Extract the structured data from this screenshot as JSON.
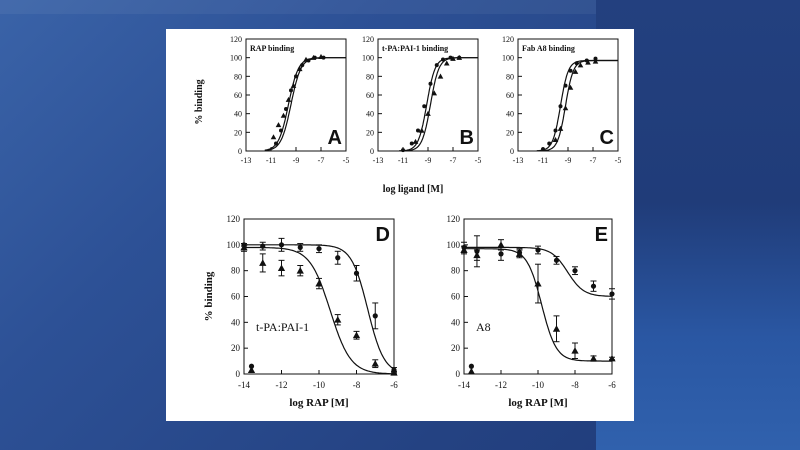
{
  "colors": {
    "background": "#2d5196",
    "right_panel": "#23407f",
    "figure_bg": "#ffffff",
    "ink": "#111111"
  },
  "figure": {
    "top_xlabel": "log ligand [M]",
    "ylabel": "% binding"
  },
  "chart_data": [
    {
      "id": "A",
      "type": "line",
      "letter": "A",
      "title": "RAP binding",
      "ylabel": "% binding",
      "xlim": [
        -13,
        -5
      ],
      "ylim": [
        0,
        120
      ],
      "xticks": [
        -13,
        -11,
        -9,
        -7,
        -5
      ],
      "yticks": [
        0,
        20,
        40,
        60,
        80,
        100,
        120
      ],
      "series": [
        {
          "marker": "circle",
          "ec50": -9.6,
          "hill": 1.1,
          "bottom": 0,
          "top": 100,
          "x_start": -11.5,
          "x_end": -5,
          "points": [
            [
              -10.6,
              8
            ],
            [
              -10.2,
              22
            ],
            [
              -9.8,
              45
            ],
            [
              -9.4,
              65
            ],
            [
              -9.0,
              80
            ],
            [
              -8.5,
              92
            ],
            [
              -8.0,
              97
            ],
            [
              -7.5,
              100
            ],
            [
              -6.8,
              100
            ]
          ]
        },
        {
          "marker": "triangle",
          "ec50": -9.4,
          "hill": 1.1,
          "bottom": 0,
          "top": 100,
          "x_start": -11.5,
          "x_end": -5,
          "points": [
            [
              -10.8,
              15
            ],
            [
              -10.4,
              28
            ],
            [
              -10.0,
              38
            ],
            [
              -9.6,
              55
            ],
            [
              -9.2,
              70
            ],
            [
              -8.7,
              88
            ],
            [
              -8.2,
              98
            ],
            [
              -7.6,
              100
            ],
            [
              -7.0,
              101
            ]
          ]
        }
      ]
    },
    {
      "id": "B",
      "type": "line",
      "letter": "B",
      "title": "t-PA:PAI-1 binding",
      "ylabel": "",
      "xlim": [
        -13,
        -5
      ],
      "ylim": [
        0,
        120
      ],
      "xticks": [
        -13,
        -11,
        -9,
        -7,
        -5
      ],
      "yticks": [
        0,
        20,
        40,
        60,
        80,
        100,
        120
      ],
      "series": [
        {
          "marker": "circle",
          "ec50": -9.1,
          "hill": 1.3,
          "bottom": 0,
          "top": 100,
          "x_start": -11.3,
          "x_end": -5,
          "points": [
            [
              -11.0,
              1
            ],
            [
              -10.3,
              8
            ],
            [
              -9.8,
              22
            ],
            [
              -9.3,
              48
            ],
            [
              -8.8,
              72
            ],
            [
              -8.3,
              92
            ],
            [
              -7.8,
              98
            ],
            [
              -7.2,
              100
            ],
            [
              -6.5,
              100
            ]
          ]
        },
        {
          "marker": "triangle",
          "ec50": -8.8,
          "hill": 1.3,
          "bottom": 0,
          "top": 100,
          "x_start": -11.3,
          "x_end": -5,
          "points": [
            [
              -10.0,
              10
            ],
            [
              -9.5,
              22
            ],
            [
              -9.0,
              40
            ],
            [
              -8.5,
              62
            ],
            [
              -8.0,
              80
            ],
            [
              -7.5,
              94
            ],
            [
              -7.0,
              99
            ],
            [
              -6.5,
              100
            ]
          ]
        }
      ]
    },
    {
      "id": "C",
      "type": "line",
      "letter": "C",
      "title": "Fab A8 binding",
      "ylabel": "",
      "xlim": [
        -13,
        -5
      ],
      "ylim": [
        0,
        120
      ],
      "xticks": [
        -13,
        -11,
        -9,
        -7,
        -5
      ],
      "yticks": [
        0,
        20,
        40,
        60,
        80,
        100,
        120
      ],
      "series": [
        {
          "marker": "circle",
          "ec50": -9.6,
          "hill": 1.4,
          "bottom": 0,
          "top": 97,
          "x_start": -11.5,
          "x_end": -5,
          "points": [
            [
              -11.0,
              2
            ],
            [
              -10.5,
              8
            ],
            [
              -10.0,
              22
            ],
            [
              -9.6,
              48
            ],
            [
              -9.2,
              70
            ],
            [
              -8.8,
              86
            ],
            [
              -8.3,
              94
            ],
            [
              -7.5,
              97
            ],
            [
              -6.8,
              99
            ]
          ]
        },
        {
          "marker": "triangle",
          "ec50": -9.2,
          "hill": 1.4,
          "bottom": 0,
          "top": 97,
          "x_start": -11.5,
          "x_end": -5,
          "points": [
            [
              -10.0,
              12
            ],
            [
              -9.6,
              24
            ],
            [
              -9.2,
              46
            ],
            [
              -8.8,
              68
            ],
            [
              -8.4,
              85
            ],
            [
              -8.0,
              92
            ],
            [
              -7.4,
              95
            ],
            [
              -6.8,
              96
            ]
          ]
        }
      ]
    },
    {
      "id": "D",
      "type": "line",
      "letter": "D",
      "annotation": "t-PA:PAI-1",
      "xlabel": "log RAP [M]",
      "ylabel": "% binding",
      "xlim": [
        -14,
        -6
      ],
      "ylim": [
        0,
        120
      ],
      "xticks": [
        -14,
        -12,
        -10,
        -8,
        -6
      ],
      "yticks": [
        0,
        20,
        40,
        60,
        80,
        100,
        120
      ],
      "series": [
        {
          "marker": "circle",
          "ic50": -7.4,
          "hill": 1.0,
          "bottom": 0,
          "top": 100,
          "x_start": -14,
          "x_end": -6,
          "points": [
            [
              -14,
              100,
              1
            ],
            [
              -13,
              99,
              3
            ],
            [
              -12,
              100,
              5
            ],
            [
              -11,
              98,
              3
            ],
            [
              -10,
              97,
              3
            ],
            [
              -9,
              90,
              5
            ],
            [
              -8,
              78,
              6
            ],
            [
              -7,
              45,
              10
            ],
            [
              -6,
              3,
              2
            ]
          ],
          "outlier": [
            -13.6,
            6
          ]
        },
        {
          "marker": "triangle",
          "ic50": -9.4,
          "hill": 0.8,
          "bottom": 0,
          "top": 98,
          "x_start": -14,
          "x_end": -6,
          "points": [
            [
              -14,
              98,
              3
            ],
            [
              -13,
              86,
              7
            ],
            [
              -12,
              82,
              6
            ],
            [
              -11,
              80,
              4
            ],
            [
              -10,
              70,
              4
            ],
            [
              -9,
              42,
              4
            ],
            [
              -8,
              30,
              3
            ],
            [
              -7,
              8,
              3
            ],
            [
              -6,
              1,
              1
            ]
          ],
          "outlier": [
            -13.6,
            3
          ]
        }
      ]
    },
    {
      "id": "E",
      "type": "line",
      "letter": "E",
      "annotation": "A8",
      "xlabel": "log RAP [M]",
      "ylabel": "",
      "xlim": [
        -14,
        -6
      ],
      "ylim": [
        0,
        120
      ],
      "xticks": [
        -14,
        -12,
        -10,
        -8,
        -6
      ],
      "yticks": [
        0,
        20,
        40,
        60,
        80,
        100,
        120
      ],
      "series": [
        {
          "marker": "circle",
          "ic50": -8.4,
          "hill": 1.0,
          "bottom": 60,
          "top": 98,
          "x_start": -14,
          "x_end": -6,
          "points": [
            [
              -14,
              98,
              4
            ],
            [
              -13.3,
              95,
              12
            ],
            [
              -12,
              93,
              5
            ],
            [
              -11,
              94,
              3
            ],
            [
              -10,
              96,
              3
            ],
            [
              -9,
              88,
              3
            ],
            [
              -8,
              80,
              3
            ],
            [
              -7,
              68,
              4
            ],
            [
              -6,
              62,
              4
            ]
          ],
          "outlier": [
            -13.6,
            6
          ]
        },
        {
          "marker": "triangle",
          "ic50": -9.8,
          "hill": 1.1,
          "bottom": 10,
          "top": 97,
          "x_start": -14,
          "x_end": -6,
          "points": [
            [
              -14,
              96,
              3
            ],
            [
              -13.3,
              92,
              4
            ],
            [
              -12,
              100,
              4
            ],
            [
              -11,
              93,
              3
            ],
            [
              -10,
              70,
              15
            ],
            [
              -9,
              35,
              10
            ],
            [
              -8,
              18,
              6
            ],
            [
              -7,
              12,
              2
            ],
            [
              -6,
              12,
              1
            ]
          ],
          "outlier": [
            -13.6,
            2
          ]
        }
      ]
    }
  ]
}
